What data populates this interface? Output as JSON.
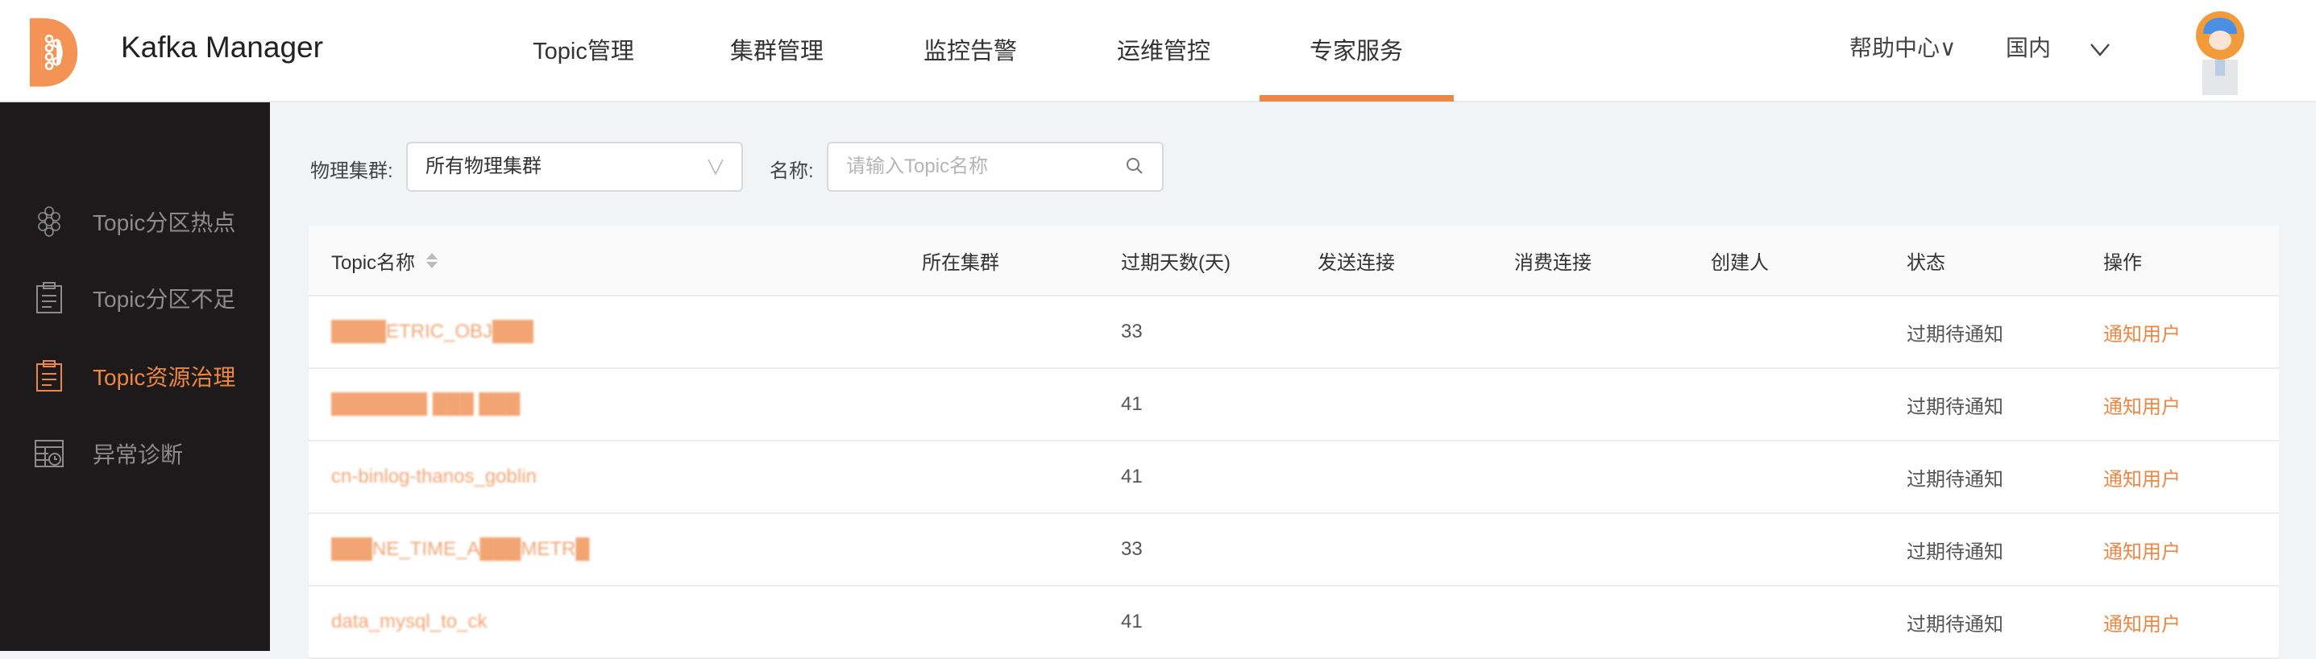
{
  "header": {
    "app_title": "Kafka Manager",
    "nav": [
      "Topic管理",
      "集群管理",
      "监控告警",
      "运维管控",
      "专家服务"
    ],
    "active_nav": "专家服务",
    "help": "帮助中心∨",
    "region": "国内",
    "accent": "#ee8644"
  },
  "sidebar": {
    "items": [
      {
        "label": "Topic分区热点",
        "icon": "hexagon-cluster-icon"
      },
      {
        "label": "Topic分区不足",
        "icon": "clipboard-icon"
      },
      {
        "label": "Topic资源治理",
        "icon": "clipboard-icon",
        "active": true
      },
      {
        "label": "异常诊断",
        "icon": "table-clock-icon"
      }
    ]
  },
  "filters": {
    "cluster_label": "物理集群:",
    "cluster_value": "所有物理集群",
    "name_label": "名称:",
    "name_placeholder": "请输入Topic名称"
  },
  "table": {
    "columns": [
      "Topic名称",
      "所在集群",
      "过期天数(天)",
      "发送连接",
      "消费连接",
      "创建人",
      "状态",
      "操作"
    ],
    "rows": [
      {
        "topic": "████ETRIC_OBJ███",
        "cluster": "",
        "days": "33",
        "send": "",
        "consume": "",
        "creator": "",
        "status": "过期待通知",
        "action": "通知用户"
      },
      {
        "topic": "███████ ███ ███",
        "cluster": "",
        "days": "41",
        "send": "",
        "consume": "",
        "creator": "",
        "status": "过期待通知",
        "action": "通知用户"
      },
      {
        "topic": "cn-binlog-thanos_goblin",
        "cluster": "",
        "days": "41",
        "send": "",
        "consume": "",
        "creator": "",
        "status": "过期待通知",
        "action": "通知用户"
      },
      {
        "topic": "███NE_TIME_A███METR█",
        "cluster": "",
        "days": "33",
        "send": "",
        "consume": "",
        "creator": "",
        "status": "过期待通知",
        "action": "通知用户"
      },
      {
        "topic": "data_mysql_to_ck",
        "cluster": "",
        "days": "41",
        "send": "",
        "consume": "",
        "creator": "",
        "status": "过期待通知",
        "action": "通知用户"
      }
    ]
  }
}
